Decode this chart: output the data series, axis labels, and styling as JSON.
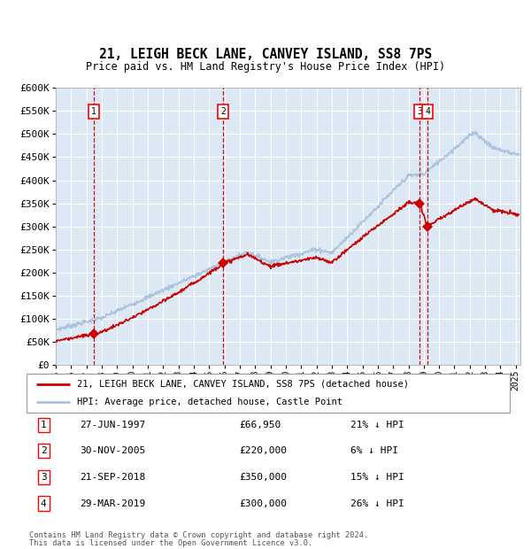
{
  "title": "21, LEIGH BECK LANE, CANVEY ISLAND, SS8 7PS",
  "subtitle": "Price paid vs. HM Land Registry's House Price Index (HPI)",
  "background_color": "#ffffff",
  "plot_bg_color": "#dce9f5",
  "grid_color": "#ffffff",
  "hpi_color": "#aac4e0",
  "price_color": "#cc0000",
  "marker_color": "#cc0000",
  "dashed_line_color": "#cc0000",
  "ylim": [
    0,
    600000
  ],
  "yticks": [
    0,
    50000,
    100000,
    150000,
    200000,
    250000,
    300000,
    350000,
    400000,
    450000,
    500000,
    550000,
    600000
  ],
  "ytick_labels": [
    "£0",
    "£50K",
    "£100K",
    "£150K",
    "£200K",
    "£250K",
    "£300K",
    "£350K",
    "£400K",
    "£450K",
    "£500K",
    "£550K",
    "£600K"
  ],
  "transactions": [
    {
      "num": 1,
      "date": "27-JUN-1997",
      "price": 66950,
      "pct": "21% ↓ HPI",
      "year": 1997.49
    },
    {
      "num": 2,
      "date": "30-NOV-2005",
      "price": 220000,
      "pct": "6% ↓ HPI",
      "year": 2005.92
    },
    {
      "num": 3,
      "date": "21-SEP-2018",
      "price": 350000,
      "pct": "15% ↓ HPI",
      "year": 2018.72
    },
    {
      "num": 4,
      "date": "29-MAR-2019",
      "price": 300000,
      "pct": "26% ↓ HPI",
      "year": 2019.24
    }
  ],
  "legend_price_label": "21, LEIGH BECK LANE, CANVEY ISLAND, SS8 7PS (detached house)",
  "legend_hpi_label": "HPI: Average price, detached house, Castle Point",
  "footer1": "Contains HM Land Registry data © Crown copyright and database right 2024.",
  "footer2": "This data is licensed under the Open Government Licence v3.0.",
  "xlim_start": 1995.0,
  "xlim_end": 2025.3
}
